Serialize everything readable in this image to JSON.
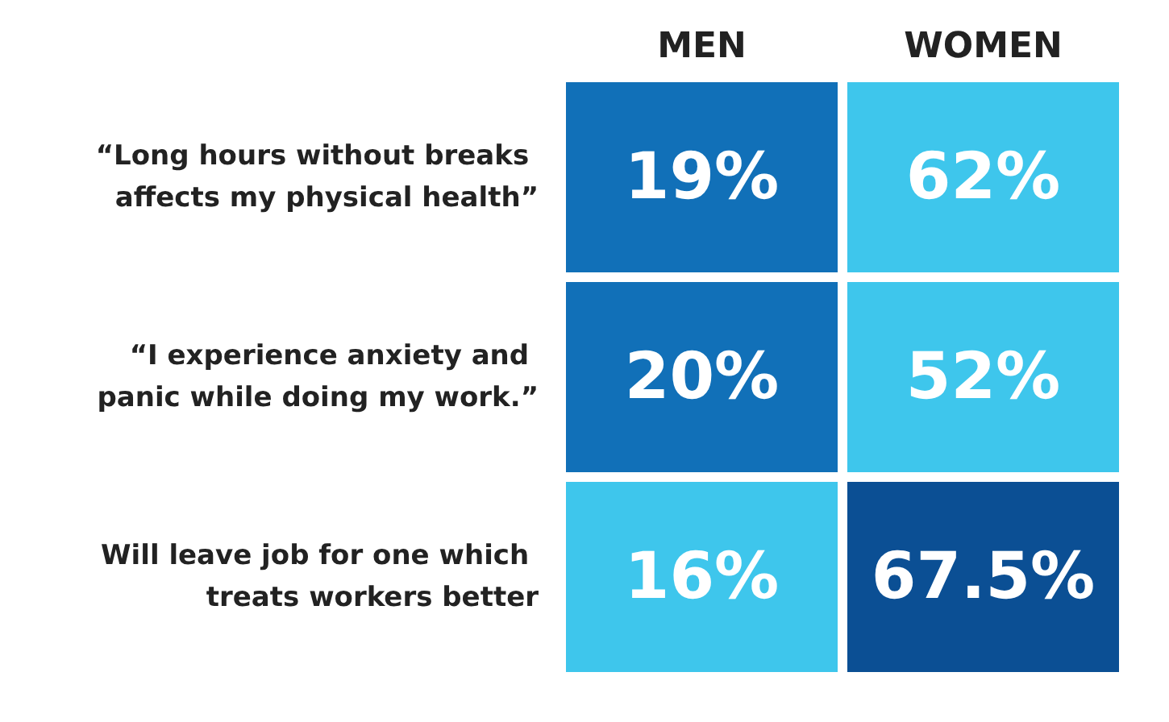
{
  "chart_data": {
    "type": "heatmap",
    "categories": [
      "MEN",
      "WOMEN"
    ],
    "y_categories": [
      "“Long hours without breaks affects my physical health”",
      "“I experience anxiety and panic while doing my work.”",
      "Will leave job for one which treats workers better"
    ],
    "cells": [
      [
        19,
        62
      ],
      [
        20,
        52
      ],
      [
        16,
        67.5
      ]
    ],
    "cell_labels": [
      [
        "19%",
        "62%"
      ],
      [
        "20%",
        "52%"
      ],
      [
        "16%",
        "67.5%"
      ]
    ],
    "colors": [
      [
        "#1170b8",
        "#3ec6ec"
      ],
      [
        "#1170b8",
        "#3ec6ec"
      ],
      [
        "#3ec6ec",
        "#0b4f94"
      ]
    ]
  }
}
